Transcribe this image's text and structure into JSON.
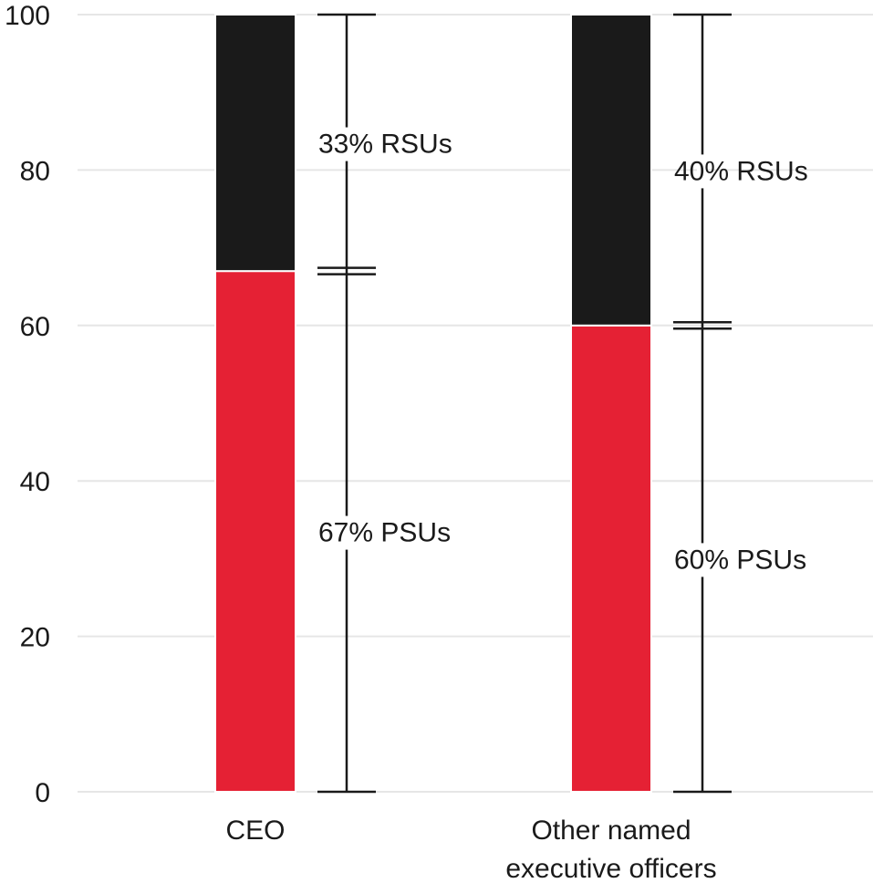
{
  "chart_data": {
    "type": "bar",
    "stacked": true,
    "categories": [
      "CEO",
      "Other named executive officers"
    ],
    "category_label_lines": [
      [
        "CEO"
      ],
      [
        "Other named",
        "executive officers"
      ]
    ],
    "series": [
      {
        "key": "psu",
        "values": [
          67,
          60
        ],
        "color": "#e52134"
      },
      {
        "key": "rsu",
        "values": [
          33,
          40
        ],
        "color": "#1a1a1a"
      }
    ],
    "segment_labels": [
      {
        "psu": "67% PSUs",
        "rsu": "33% RSUs"
      },
      {
        "psu": "60% PSUs",
        "rsu": "40% RSUs"
      }
    ],
    "ylim": [
      0,
      100
    ],
    "yticks": [
      "0",
      "20",
      "40",
      "60",
      "80",
      "100"
    ],
    "grid": true,
    "grid_color": "#e6e6e6",
    "bracket_color": "#1a1a1a"
  }
}
